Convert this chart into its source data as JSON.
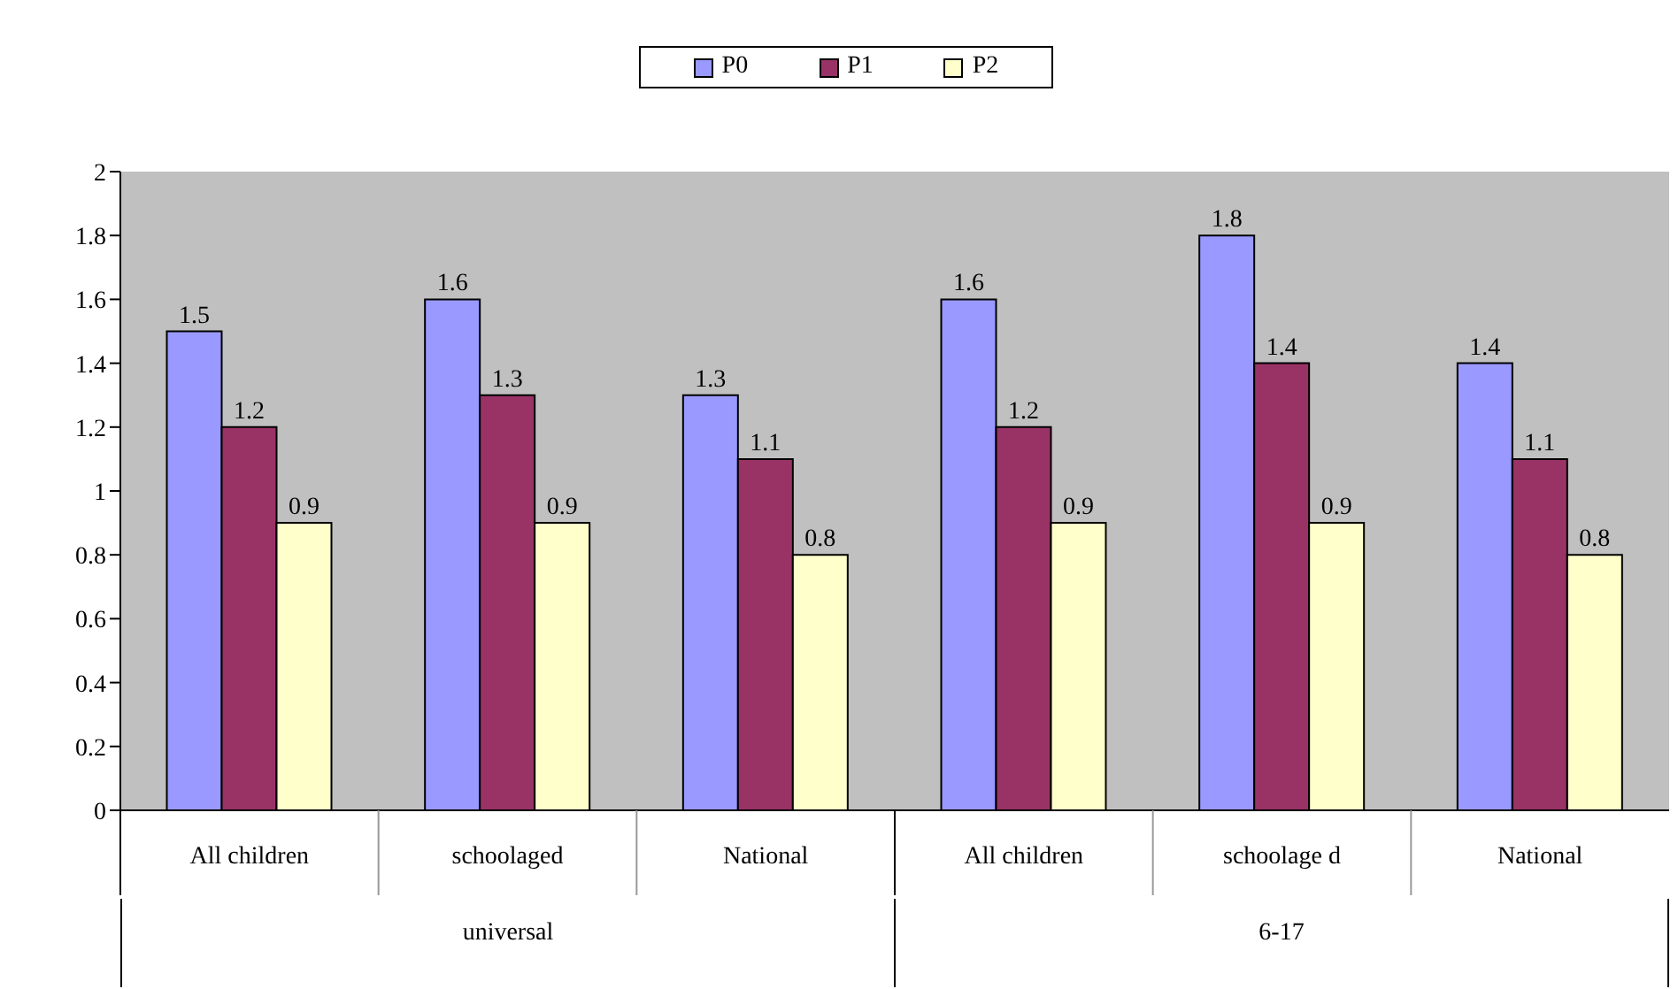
{
  "chart_data": {
    "type": "bar",
    "categories": [
      "All children",
      "schoolaged",
      "National",
      "All children",
      "schoolage d",
      "National"
    ],
    "series": [
      {
        "name": "P0",
        "color": "#9999ff",
        "values": [
          1.5,
          1.6,
          1.3,
          1.6,
          1.8,
          1.4
        ]
      },
      {
        "name": "P1",
        "color": "#993366",
        "values": [
          1.2,
          1.3,
          1.1,
          1.2,
          1.4,
          1.1
        ]
      },
      {
        "name": "P2",
        "color": "#ffffcc",
        "values": [
          0.9,
          0.9,
          0.8,
          0.9,
          0.9,
          0.8
        ]
      }
    ],
    "annotations": [
      "universal",
      "6-17"
    ],
    "ylim": [
      0,
      2
    ],
    "yticks": [
      0,
      0.2,
      0.4,
      0.6,
      0.8,
      1,
      1.2,
      1.4,
      1.6,
      1.8,
      2
    ],
    "grid": false,
    "legend": "top",
    "data_labels": true
  }
}
